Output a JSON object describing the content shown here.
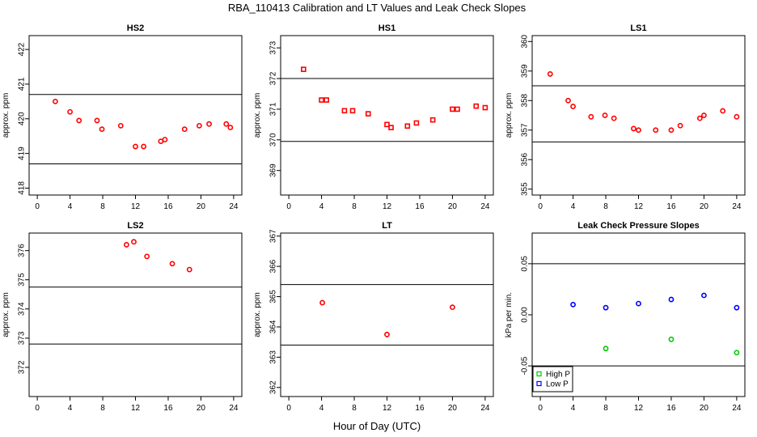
{
  "figure": {
    "title": "RBA_110413  Calibration and LT Values and Leak Check Slopes",
    "xlabel": "Hour of Day (UTC)"
  },
  "colors": {
    "point": "#ff0000",
    "high_p": "#00cc00",
    "low_p": "#0000ff",
    "line": "#000000"
  },
  "chart_data": [
    {
      "type": "scatter",
      "title": "HS2",
      "xlabel": "",
      "ylabel": "approx. ppm",
      "xlim": [
        -1,
        25
      ],
      "ylim": [
        417.8,
        422.4
      ],
      "xticks": [
        "0",
        "4",
        "8",
        "12",
        "16",
        "20",
        "24"
      ],
      "yticks": [
        "418",
        "419",
        "420",
        "421",
        "422"
      ],
      "hlines": [
        418.7,
        420.7
      ],
      "marker": "circle",
      "series": [
        {
          "name": "HS2",
          "x": [
            2.2,
            4.0,
            5.1,
            7.3,
            7.9,
            10.2,
            12.0,
            13.0,
            15.1,
            15.6,
            18.0,
            19.8,
            21.0,
            23.1,
            23.6
          ],
          "y": [
            420.5,
            420.2,
            419.95,
            419.95,
            419.7,
            419.8,
            419.2,
            419.2,
            419.35,
            419.4,
            419.7,
            419.8,
            419.85,
            419.85,
            419.75
          ]
        }
      ]
    },
    {
      "type": "scatter",
      "title": "HS1",
      "xlabel": "",
      "ylabel": "approx. ppm",
      "xlim": [
        -1,
        25
      ],
      "ylim": [
        368.2,
        373.4
      ],
      "xticks": [
        "0",
        "4",
        "8",
        "12",
        "16",
        "20",
        "24"
      ],
      "yticks": [
        "369",
        "370",
        "371",
        "372",
        "373"
      ],
      "hlines": [
        369.95,
        372.0
      ],
      "marker": "square",
      "series": [
        {
          "name": "HS1",
          "x": [
            1.8,
            4.0,
            4.6,
            6.8,
            7.8,
            9.7,
            12.0,
            12.5,
            14.5,
            15.6,
            17.6,
            20.0,
            20.6,
            22.9,
            24.0
          ],
          "y": [
            372.3,
            371.3,
            371.3,
            370.95,
            370.95,
            370.85,
            370.5,
            370.4,
            370.45,
            370.55,
            370.65,
            371.0,
            371.0,
            371.1,
            371.05
          ]
        }
      ]
    },
    {
      "type": "scatter",
      "title": "LS1",
      "xlabel": "",
      "ylabel": "approx. ppm",
      "xlim": [
        -1,
        25
      ],
      "ylim": [
        354.8,
        360.2
      ],
      "xticks": [
        "0",
        "4",
        "8",
        "12",
        "16",
        "20",
        "24"
      ],
      "yticks": [
        "355",
        "356",
        "357",
        "358",
        "359",
        "360"
      ],
      "hlines": [
        356.6,
        358.5
      ],
      "marker": "circle",
      "series": [
        {
          "name": "LS1",
          "x": [
            1.2,
            3.4,
            4.0,
            6.2,
            7.9,
            9.0,
            11.4,
            12.0,
            14.1,
            16.0,
            17.1,
            19.5,
            20.0,
            22.3,
            24.0
          ],
          "y": [
            358.9,
            358.0,
            357.8,
            357.45,
            357.5,
            357.4,
            357.05,
            357.0,
            357.0,
            357.0,
            357.15,
            357.4,
            357.5,
            357.65,
            357.45
          ]
        }
      ]
    },
    {
      "type": "scatter",
      "title": "LS2",
      "xlabel": "",
      "ylabel": "approx. ppm",
      "xlim": [
        -1,
        25
      ],
      "ylim": [
        371.0,
        376.6
      ],
      "xticks": [
        "0",
        "4",
        "8",
        "12",
        "16",
        "20",
        "24"
      ],
      "yticks": [
        "372",
        "373",
        "374",
        "375",
        "376"
      ],
      "hlines": [
        372.8,
        374.75
      ],
      "marker": "circle",
      "series": [
        {
          "name": "LS2",
          "x": [
            10.9,
            11.8,
            13.4,
            16.5,
            18.6
          ],
          "y": [
            376.2,
            376.3,
            375.8,
            375.55,
            375.35
          ]
        }
      ]
    },
    {
      "type": "scatter",
      "title": "LT",
      "xlabel": "",
      "ylabel": "approx. ppm",
      "xlim": [
        -1,
        25
      ],
      "ylim": [
        361.7,
        367.1
      ],
      "xticks": [
        "0",
        "4",
        "8",
        "12",
        "16",
        "20",
        "24"
      ],
      "yticks": [
        "362",
        "363",
        "364",
        "365",
        "366",
        "367"
      ],
      "hlines": [
        363.4,
        365.4
      ],
      "marker": "circle",
      "series": [
        {
          "name": "LT",
          "x": [
            4.1,
            12.0,
            20.0
          ],
          "y": [
            364.8,
            363.75,
            364.65
          ]
        }
      ]
    },
    {
      "type": "scatter",
      "title": "Leak Check Pressure Slopes",
      "xlabel": "",
      "ylabel": "kPa per min.",
      "xlim": [
        -1,
        25
      ],
      "ylim": [
        -0.08,
        0.08
      ],
      "xticks": [
        "0",
        "4",
        "8",
        "12",
        "16",
        "20",
        "24"
      ],
      "yticks": [
        "-0.05",
        "0.00",
        "0.05"
      ],
      "hlines": [
        -0.05,
        0.05
      ],
      "marker": "circle",
      "series": [
        {
          "name": "High P",
          "color": "#00cc00",
          "x": [
            8.0,
            16.0,
            24.0
          ],
          "y": [
            -0.033,
            -0.024,
            -0.037
          ]
        },
        {
          "name": "Low P",
          "color": "#0000ff",
          "x": [
            4.0,
            8.0,
            12.0,
            16.0,
            20.0,
            24.0
          ],
          "y": [
            0.01,
            0.007,
            0.011,
            0.015,
            0.019,
            0.007
          ]
        }
      ],
      "legend": {
        "placement": "bottom-left",
        "entries": [
          "High P",
          "Low P"
        ]
      }
    }
  ]
}
